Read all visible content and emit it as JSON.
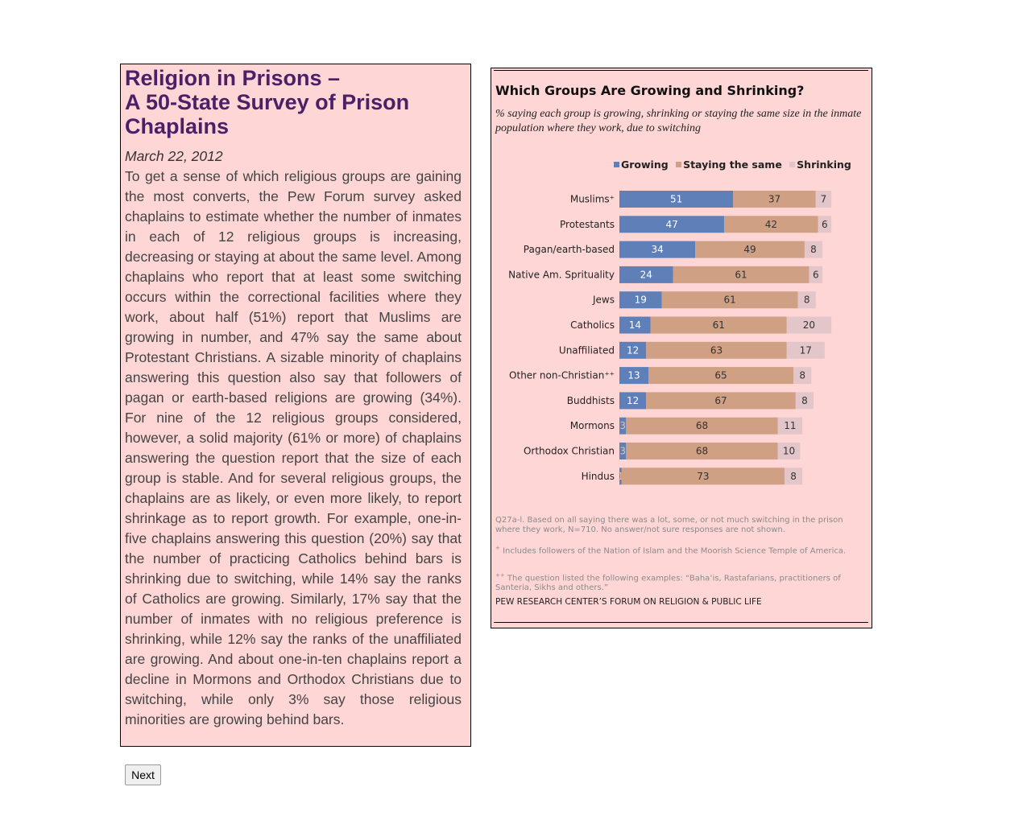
{
  "article": {
    "title_line1": "Religion in Prisons –",
    "title_line2": "A 50-State Survey of Prison",
    "title_line3": "Chaplains",
    "date": "March 22, 2012",
    "body": "To get a sense of which religious groups are gaining the most converts, the Pew Forum survey asked chaplains to estimate whether the number of inmates in each of 12 religious groups is increasing, decreasing or staying at about the same level. Among chaplains who report that at least some switching occurs within the correctional facilities where they work, about half (51%) report that Muslims are growing in number, and 47% say the same about Protestant Christians. A sizable minority of chaplains answering this question also say that followers of pagan or earth-based religions are growing (34%). For nine of the 12 religious groups considered, however, a solid majority (61% or more) of chaplains answering the question report that the size of each group is stable. And for several religious groups, the chaplains are as likely, or even more likely, to report shrinkage as to report growth. For example, one-in-five chaplains answering this question (20%) say that the number of practicing Catholics behind bars is shrinking due to switching, while 14% say the ranks of Catholics are growing. Similarly, 17% say that the number of inmates with no religious preference is shrinking, while 12% say the ranks of the unaffiliated are growing. And about one-in-ten chaplains report a decline in Mormons and Orthodox Christians due to switching, while only 3% say those religious minorities are growing behind bars."
  },
  "nav": {
    "next_label": "Next"
  },
  "colors": {
    "growing": "#5f7fb8",
    "same": "#cfa083",
    "shrinking": "#e2c6ca",
    "panel": "#ffd6d6"
  },
  "chart_data": {
    "type": "bar",
    "orientation": "horizontal",
    "stacked": true,
    "title": "Which Groups Are Growing and Shrinking?",
    "subtitle": "% saying each group is growing, shrinking or staying the same size in the inmate population where they work, due to switching",
    "legend_position": "top",
    "grid": false,
    "categories": [
      "Muslims⁺",
      "Protestants",
      "Pagan/earth-based",
      "Native Am. Sprituality",
      "Jews",
      "Catholics",
      "Unaffiliated",
      "Other non-Christian⁺⁺",
      "Buddhists",
      "Mormons",
      "Orthodox Christian",
      "Hindus"
    ],
    "series": [
      {
        "name": "Growing",
        "values": [
          51,
          47,
          34,
          24,
          19,
          14,
          12,
          13,
          12,
          3,
          3,
          1
        ]
      },
      {
        "name": "Staying the same",
        "values": [
          37,
          42,
          49,
          61,
          61,
          61,
          63,
          65,
          67,
          68,
          68,
          73
        ]
      },
      {
        "name": "Shrinking",
        "values": [
          7,
          6,
          8,
          6,
          8,
          20,
          17,
          8,
          8,
          11,
          10,
          8
        ]
      }
    ],
    "notes": {
      "base": "Q27a-l. Based on all saying there was a lot, some, or not much switching in the prison where they work, N=710. No answer/not sure responses are not shown.",
      "plus_marker": "+",
      "plus": "Includes followers of the Nation of Islam and the Moorish Science Temple of America.",
      "plusplus_marker": "++",
      "plusplus": "The question listed the following examples: “Baha’is, Rastafarians, practitioners of Santeria, Sikhs and others.”",
      "source": "PEW RESEARCH CENTER’S FORUM ON RELIGION & PUBLIC LIFE"
    }
  }
}
